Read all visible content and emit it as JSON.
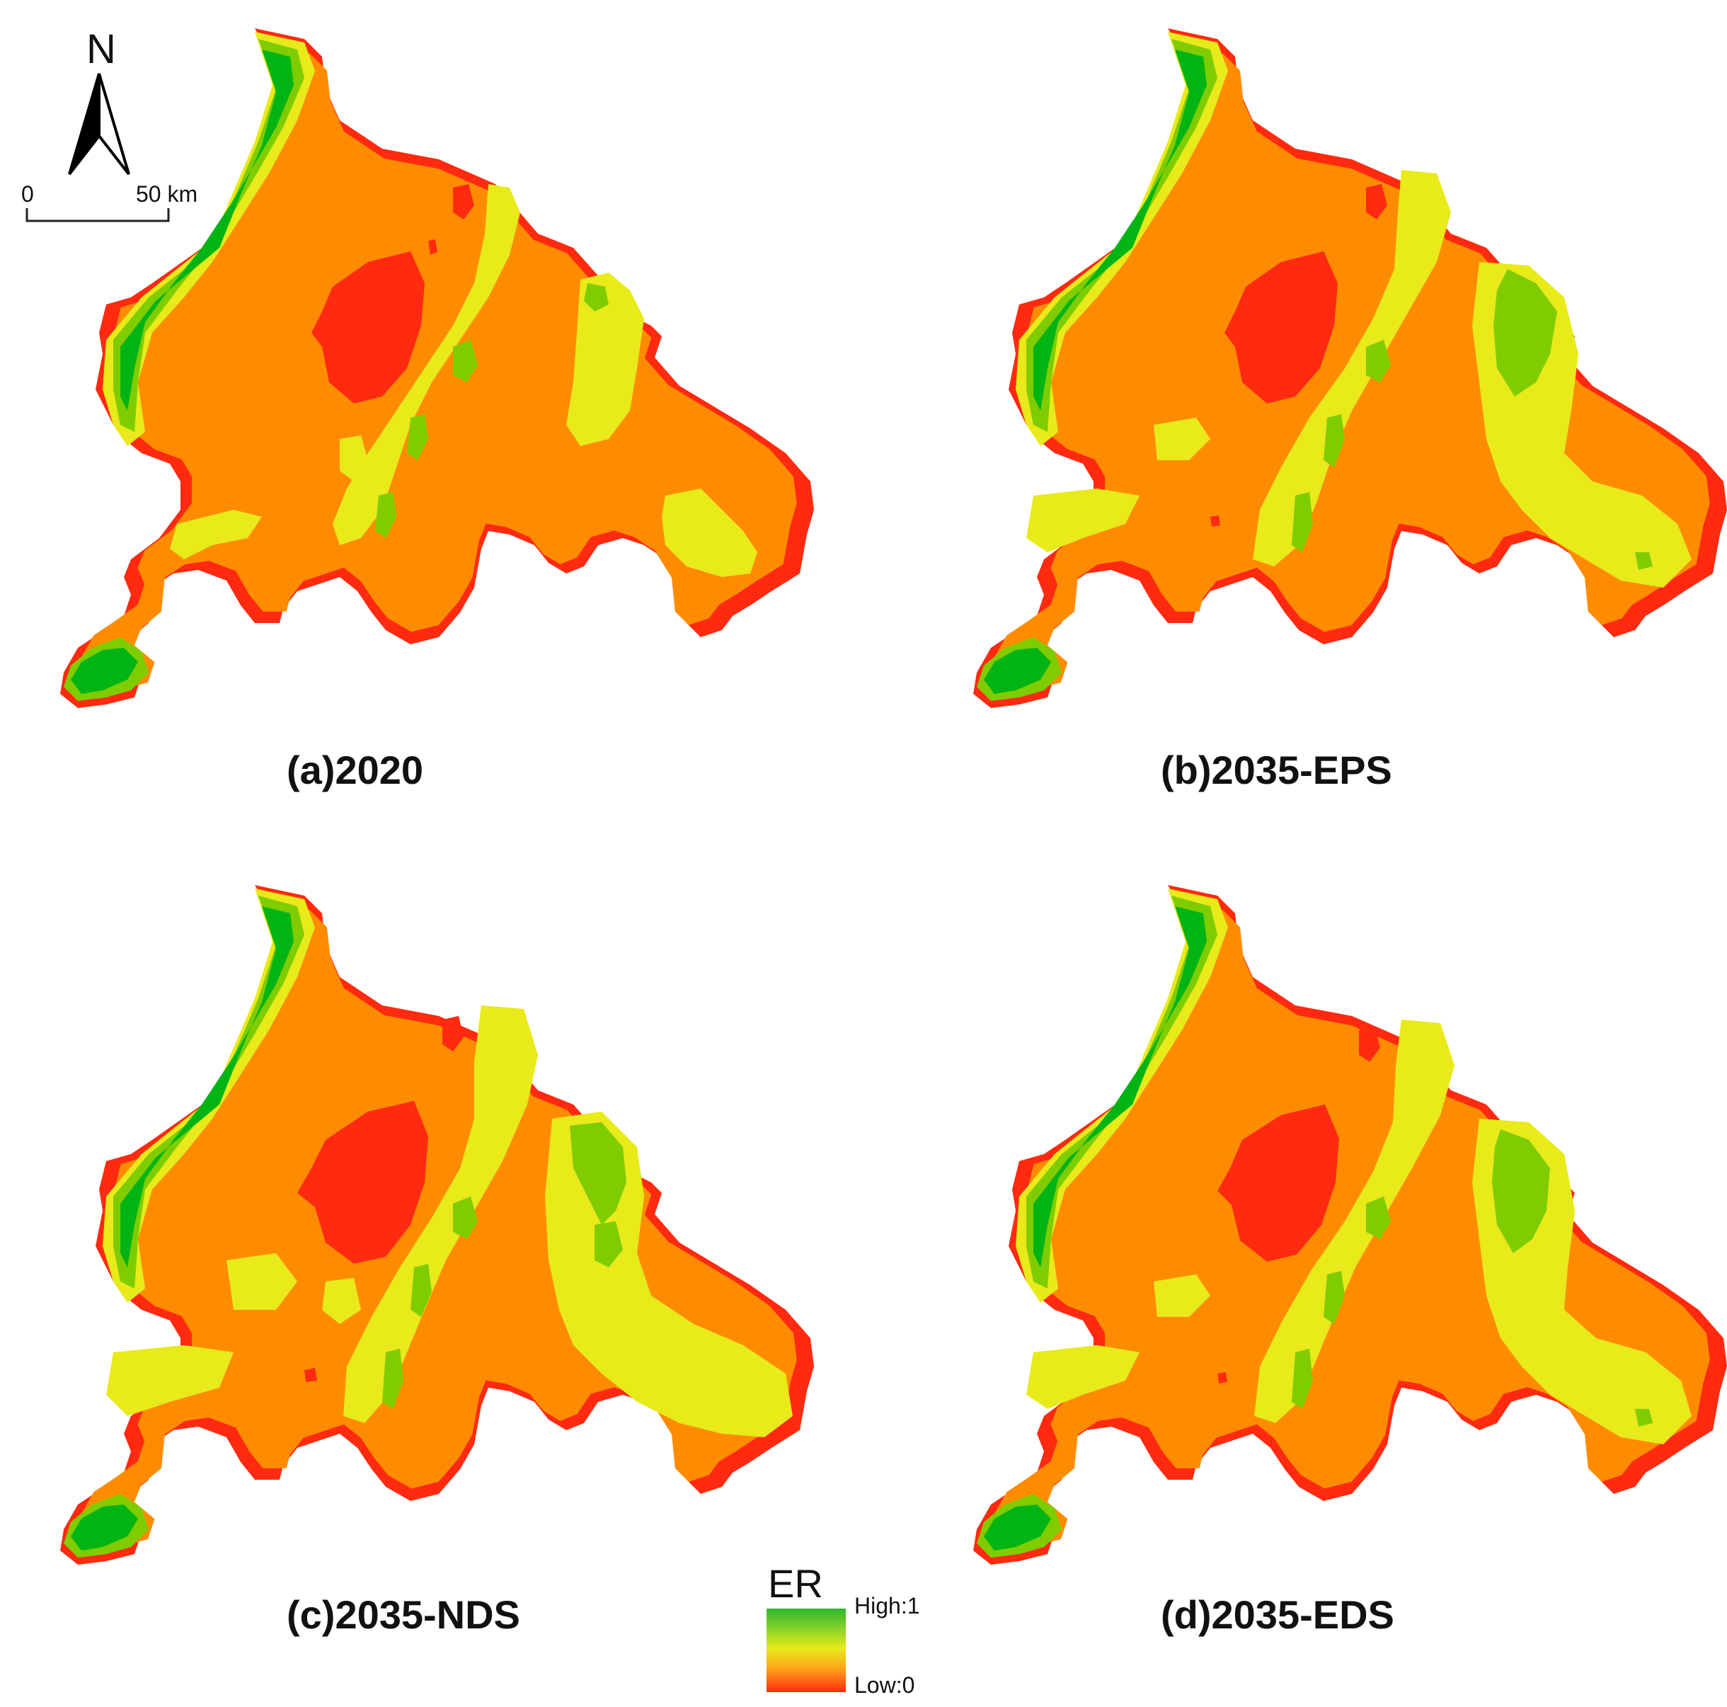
{
  "panels": [
    {
      "id": "a",
      "caption": "(a)2020"
    },
    {
      "id": "b",
      "caption": "(b)2035-EPS"
    },
    {
      "id": "c",
      "caption": "(c)2035-NDS"
    },
    {
      "id": "d",
      "caption": "(d)2035-EDS"
    }
  ],
  "north_arrow": {
    "label": "N"
  },
  "scale_bar": {
    "start_label": "0",
    "end_label": "50 km"
  },
  "legend": {
    "title": "ER",
    "high_label": "High:1",
    "low_label": "Low:0",
    "colors": {
      "high": "#2fb52f",
      "mid": "#e8ea1a",
      "low": "#ff2a10"
    }
  },
  "map_colors": {
    "edge": "#ff2a10",
    "body": "#ff8c00",
    "yellow": "#e8ea1a",
    "light_green": "#7fcc00",
    "green": "#00b414"
  }
}
